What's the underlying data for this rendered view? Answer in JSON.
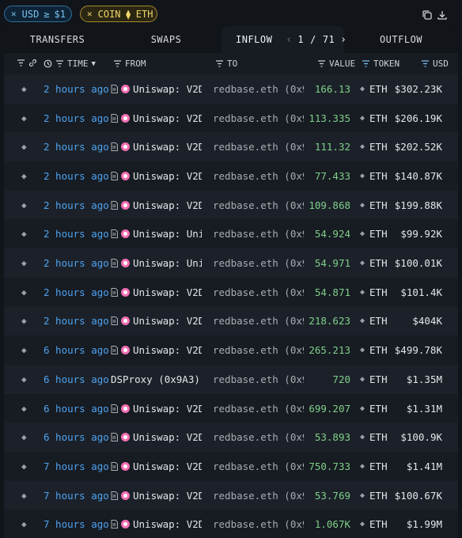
{
  "filters": {
    "usd": {
      "field": "USD",
      "operator": "≥",
      "value": "$1"
    },
    "coin": {
      "field": "COIN",
      "operator": "⧫",
      "value": "ETH"
    }
  },
  "tabs": [
    {
      "label": "TRANSFERS"
    },
    {
      "label": "SWAPS"
    },
    {
      "label": "INFLOW"
    },
    {
      "label": "OUTFLOW"
    }
  ],
  "pager": {
    "current": "1",
    "separator": "/",
    "total": "71"
  },
  "columns": {
    "time": "TIME",
    "from": "FROM",
    "to": "TO",
    "value": "VALUE",
    "token": "TOKEN",
    "usd": "USD"
  },
  "rows": [
    {
      "time": "2 hours ago",
      "from": "Uniswap: V2D…",
      "from_icon": "uniswap-icon",
      "to": "redbase.eth (0x9…",
      "value": "166.13",
      "token": "ETH",
      "usd": "$302.23K"
    },
    {
      "time": "2 hours ago",
      "from": "Uniswap: V2D…",
      "from_icon": "uniswap-icon",
      "to": "redbase.eth (0x9…",
      "value": "113.335",
      "token": "ETH",
      "usd": "$206.19K"
    },
    {
      "time": "2 hours ago",
      "from": "Uniswap: V2D…",
      "from_icon": "uniswap-icon",
      "to": "redbase.eth (0x9…",
      "value": "111.32",
      "token": "ETH",
      "usd": "$202.52K"
    },
    {
      "time": "2 hours ago",
      "from": "Uniswap: V2D…",
      "from_icon": "uniswap-icon",
      "to": "redbase.eth (0x9…",
      "value": "77.433",
      "token": "ETH",
      "usd": "$140.87K"
    },
    {
      "time": "2 hours ago",
      "from": "Uniswap: V2D…",
      "from_icon": "uniswap-icon",
      "to": "redbase.eth (0x9…",
      "value": "109.868",
      "token": "ETH",
      "usd": "$199.88K"
    },
    {
      "time": "2 hours ago",
      "from": "Uniswap: Uni…",
      "from_icon": "uniswap-icon",
      "to": "redbase.eth (0x9…",
      "value": "54.924",
      "token": "ETH",
      "usd": "$99.92K"
    },
    {
      "time": "2 hours ago",
      "from": "Uniswap: Uni…",
      "from_icon": "uniswap-icon",
      "to": "redbase.eth (0x9…",
      "value": "54.971",
      "token": "ETH",
      "usd": "$100.01K"
    },
    {
      "time": "2 hours ago",
      "from": "Uniswap: V2D…",
      "from_icon": "uniswap-icon",
      "to": "redbase.eth (0x9…",
      "value": "54.871",
      "token": "ETH",
      "usd": "$101.4K"
    },
    {
      "time": "2 hours ago",
      "from": "Uniswap: V2D…",
      "from_icon": "uniswap-icon",
      "to": "redbase.eth (0x9…",
      "value": "218.623",
      "token": "ETH",
      "usd": "$404K"
    },
    {
      "time": "6 hours ago",
      "from": "Uniswap: V2D…",
      "from_icon": "uniswap-icon",
      "to": "redbase.eth (0x9…",
      "value": "265.213",
      "token": "ETH",
      "usd": "$499.78K"
    },
    {
      "time": "6 hours ago",
      "from": "DSProxy (0x9A3)",
      "from_icon": "none",
      "to": "redbase.eth (0x9…",
      "value": "720",
      "token": "ETH",
      "usd": "$1.35M"
    },
    {
      "time": "6 hours ago",
      "from": "Uniswap: V2D…",
      "from_icon": "uniswap-icon",
      "to": "redbase.eth (0x9…",
      "value": "699.207",
      "token": "ETH",
      "usd": "$1.31M"
    },
    {
      "time": "6 hours ago",
      "from": "Uniswap: V2D…",
      "from_icon": "uniswap-icon",
      "to": "redbase.eth (0x9…",
      "value": "53.893",
      "token": "ETH",
      "usd": "$100.9K"
    },
    {
      "time": "7 hours ago",
      "from": "Uniswap: V2D…",
      "from_icon": "uniswap-icon",
      "to": "redbase.eth (0x9…",
      "value": "750.733",
      "token": "ETH",
      "usd": "$1.41M"
    },
    {
      "time": "7 hours ago",
      "from": "Uniswap: V2D…",
      "from_icon": "uniswap-icon",
      "to": "redbase.eth (0x9…",
      "value": "53.769",
      "token": "ETH",
      "usd": "$100.67K"
    },
    {
      "time": "7 hours ago",
      "from": "Uniswap: V2D…",
      "from_icon": "uniswap-icon",
      "to": "redbase.eth (0x9…",
      "value": "1.067K",
      "token": "ETH",
      "usd": "$1.99M"
    }
  ],
  "colors": {
    "background": "#111419",
    "panel": "#171b22",
    "time_link": "#4da3f0",
    "value_green": "#7fd08a",
    "usd_chip": "#7cc0ee",
    "coin_chip": "#f0d56a",
    "uniswap_pink": "#f26fb3"
  }
}
